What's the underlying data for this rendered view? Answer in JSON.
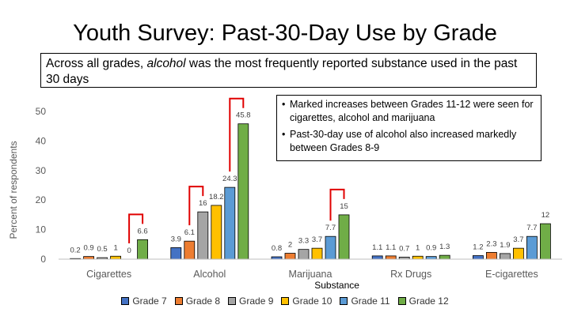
{
  "title": "Youth Survey: Past-30-Day Use by Grade",
  "callout": {
    "before": "Across all grades, ",
    "emphasis": "alcohol",
    "after": " was the most frequently reported substance used in the past 30 days"
  },
  "notes": [
    "Marked increases between Grades 11-12 were seen for cigarettes, alcohol and marijuana",
    "Past-30-day use of alcohol also increased markedly between Grades 8-9"
  ],
  "chart_data": {
    "type": "bar",
    "title": "Youth Survey: Past-30-Day Use by Grade",
    "xlabel": "Substance",
    "ylabel": "Percent of respondents",
    "ylim": [
      0,
      50
    ],
    "yticks": [
      0,
      10,
      20,
      30,
      40,
      50
    ],
    "grid": false,
    "legend": "bottom",
    "categories": [
      "Cigarettes",
      "Alcohol",
      "Marijuana",
      "Rx Drugs",
      "E-cigarettes"
    ],
    "series": [
      {
        "name": "Grade 7",
        "color": "#4472C4",
        "values": [
          0.2,
          3.9,
          0.8,
          1.1,
          1.2
        ]
      },
      {
        "name": "Grade 8",
        "color": "#ED7D31",
        "values": [
          0.9,
          6.1,
          2,
          1.1,
          2.3
        ]
      },
      {
        "name": "Grade 9",
        "color": "#A5A5A5",
        "values": [
          0.5,
          16,
          3.3,
          0.7,
          1.9
        ]
      },
      {
        "name": "Grade 10",
        "color": "#FFC000",
        "values": [
          1,
          18.2,
          3.7,
          1,
          3.7
        ]
      },
      {
        "name": "Grade 11",
        "color": "#5B9BD5",
        "values": [
          0,
          24.3,
          7.7,
          0.9,
          7.7
        ]
      },
      {
        "name": "Grade 12",
        "color": "#70AD47",
        "values": [
          6.6,
          45.8,
          15,
          1.3,
          12
        ]
      }
    ],
    "highlights": [
      {
        "category": "Cigarettes",
        "from": "Grade 11",
        "to": "Grade 12"
      },
      {
        "category": "Alcohol",
        "from": "Grade 8",
        "to": "Grade 9"
      },
      {
        "category": "Alcohol",
        "from": "Grade 11",
        "to": "Grade 12"
      },
      {
        "category": "Marijuana",
        "from": "Grade 11",
        "to": "Grade 12"
      }
    ],
    "highlight_color": "#E00000"
  }
}
